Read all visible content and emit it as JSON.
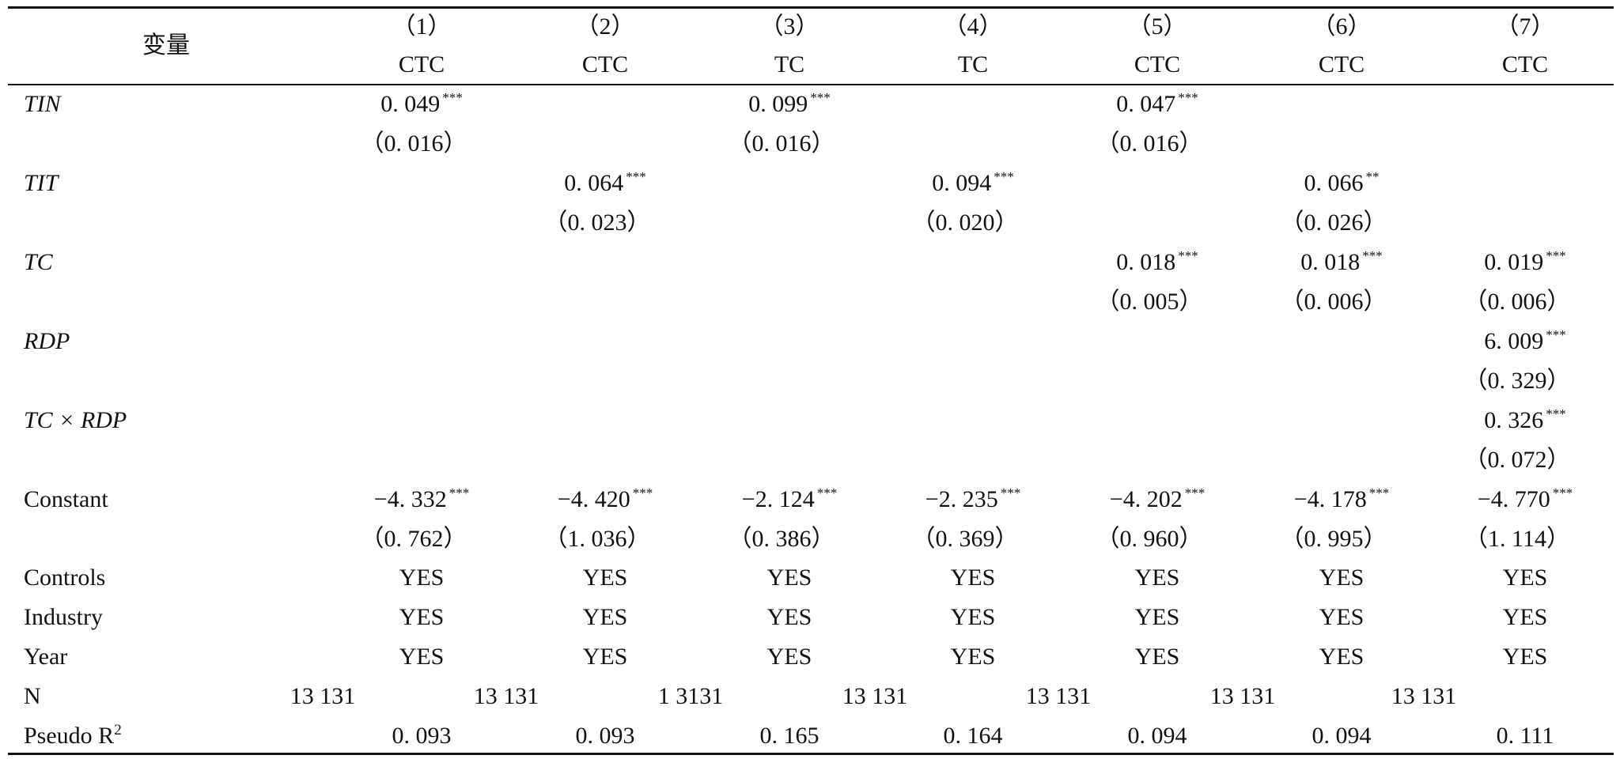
{
  "header": {
    "variable_label": "变量",
    "columns": [
      {
        "num": "（1）",
        "dep": "CTC"
      },
      {
        "num": "（2）",
        "dep": "CTC"
      },
      {
        "num": "（3）",
        "dep": "TC"
      },
      {
        "num": "（4）",
        "dep": "TC"
      },
      {
        "num": "（5）",
        "dep": "CTC"
      },
      {
        "num": "（6）",
        "dep": "CTC"
      },
      {
        "num": "（7）",
        "dep": "CTC"
      }
    ]
  },
  "rows": [
    {
      "label": "TIN",
      "italic": true,
      "coef": [
        "0. 049",
        "",
        "0. 099",
        "",
        "0. 047",
        "",
        ""
      ],
      "stars": [
        "***",
        "",
        "***",
        "",
        "***",
        "",
        ""
      ],
      "se": [
        "（0. 016）",
        "",
        "（0. 016）",
        "",
        "（0. 016）",
        "",
        ""
      ]
    },
    {
      "label": "TIT",
      "italic": true,
      "coef": [
        "",
        "0. 064",
        "",
        "0. 094",
        "",
        "0. 066",
        ""
      ],
      "stars": [
        "",
        "***",
        "",
        "***",
        "",
        "**",
        ""
      ],
      "se": [
        "",
        "（0. 023）",
        "",
        "（0. 020）",
        "",
        "（0. 026）",
        ""
      ]
    },
    {
      "label": "TC",
      "italic": true,
      "coef": [
        "",
        "",
        "",
        "",
        "0. 018",
        "0. 018",
        "0. 019"
      ],
      "stars": [
        "",
        "",
        "",
        "",
        "***",
        "***",
        "***"
      ],
      "se": [
        "",
        "",
        "",
        "",
        "（0. 005）",
        "（0. 006）",
        "（0. 006）"
      ]
    },
    {
      "label": "RDP",
      "italic": true,
      "coef": [
        "",
        "",
        "",
        "",
        "",
        "",
        "6. 009"
      ],
      "stars": [
        "",
        "",
        "",
        "",
        "",
        "",
        "***"
      ],
      "se": [
        "",
        "",
        "",
        "",
        "",
        "",
        "（0. 329）"
      ]
    },
    {
      "label": "TC × RDP",
      "italic": true,
      "coef": [
        "",
        "",
        "",
        "",
        "",
        "",
        "0. 326"
      ],
      "stars": [
        "",
        "",
        "",
        "",
        "",
        "",
        "***"
      ],
      "se": [
        "",
        "",
        "",
        "",
        "",
        "",
        "（0. 072）"
      ]
    },
    {
      "label": "Constant",
      "italic": false,
      "coef": [
        "−4. 332",
        "−4. 420",
        "−2. 124",
        "−2. 235",
        "−4. 202",
        "−4. 178",
        "−4. 770"
      ],
      "stars": [
        "***",
        "***",
        "***",
        "***",
        "***",
        "***",
        "***"
      ],
      "se": [
        "（0. 762）",
        "（1. 036）",
        "（0. 386）",
        "（0. 369）",
        "（0. 960）",
        "（0. 995）",
        "（1. 114）"
      ]
    }
  ],
  "controls_rows": [
    {
      "label": "Controls",
      "values": [
        "YES",
        "YES",
        "YES",
        "YES",
        "YES",
        "YES",
        "YES"
      ]
    },
    {
      "label": "Industry",
      "values": [
        "YES",
        "YES",
        "YES",
        "YES",
        "YES",
        "YES",
        "YES"
      ]
    },
    {
      "label": "Year",
      "values": [
        "YES",
        "YES",
        "YES",
        "YES",
        "YES",
        "YES",
        "YES"
      ]
    }
  ],
  "n_row": {
    "label": "N",
    "values": [
      "13 131",
      "13 131",
      "1 3131",
      "13 131",
      "13 131",
      "13 131",
      "13 131"
    ]
  },
  "r2_row": {
    "label": "Pseudo R",
    "label_sup": "2",
    "values": [
      "0. 093",
      "0. 093",
      "0. 165",
      "0. 164",
      "0. 094",
      "0. 094",
      "0. 111"
    ]
  }
}
